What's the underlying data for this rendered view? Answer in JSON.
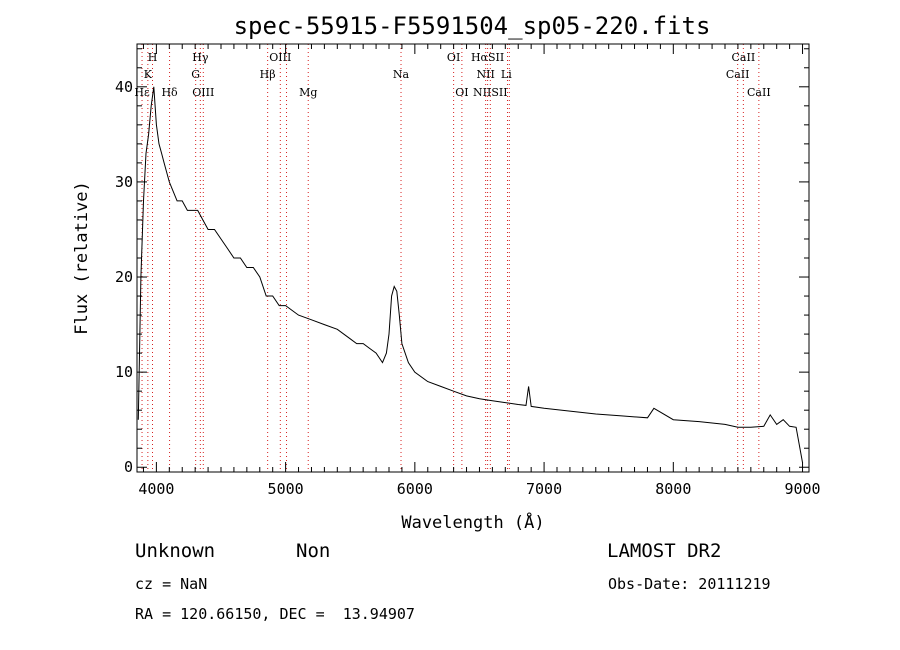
{
  "chart_data": {
    "type": "line",
    "title": "spec-55915-F5591504_sp05-220.fits",
    "xlabel": "Wavelength (Å)",
    "ylabel": "Flux (relative)",
    "xlim": [
      3850,
      9050
    ],
    "ylim": [
      -0.5,
      44.5
    ],
    "xticks": [
      4000,
      5000,
      6000,
      7000,
      8000,
      9000
    ],
    "yticks": [
      0,
      10,
      20,
      30,
      40
    ],
    "grid": false,
    "series": [
      {
        "color": "#000000",
        "x": [
          3860,
          3880,
          3900,
          3920,
          3940,
          3960,
          3980,
          4000,
          4020,
          4040,
          4060,
          4080,
          4100,
          4130,
          4160,
          4200,
          4240,
          4280,
          4320,
          4360,
          4400,
          4450,
          4500,
          4550,
          4600,
          4650,
          4700,
          4750,
          4800,
          4850,
          4900,
          4950,
          5000,
          5100,
          5200,
          5300,
          5400,
          5500,
          5550,
          5600,
          5650,
          5700,
          5750,
          5780,
          5800,
          5820,
          5840,
          5860,
          5880,
          5900,
          5950,
          6000,
          6100,
          6200,
          6300,
          6400,
          6500,
          6600,
          6700,
          6800,
          6860,
          6880,
          6900,
          7000,
          7200,
          7400,
          7600,
          7800,
          7850,
          8000,
          8200,
          8400,
          8500,
          8600,
          8700,
          8750,
          8800,
          8850,
          8900,
          8950,
          9000
        ],
        "y": [
          5,
          20,
          28,
          33,
          35,
          38,
          40,
          36,
          34,
          33,
          32,
          31,
          30,
          29,
          28,
          28,
          27,
          27,
          27,
          26,
          25,
          25,
          24,
          23,
          22,
          22,
          21,
          21,
          20,
          18,
          18,
          17,
          17,
          16,
          15.5,
          15,
          14.5,
          13.5,
          13,
          13,
          12.5,
          12,
          11,
          12,
          14,
          18,
          19,
          18.5,
          16,
          13,
          11,
          10,
          9,
          8.5,
          8,
          7.5,
          7.2,
          7,
          6.8,
          6.6,
          6.5,
          8.5,
          6.4,
          6.2,
          5.9,
          5.6,
          5.4,
          5.2,
          6.2,
          5,
          4.8,
          4.5,
          4.2,
          4.2,
          4.3,
          5.5,
          4.5,
          5,
          4.3,
          4.2,
          0.5
        ]
      }
    ]
  },
  "line_labels": {
    "row1": [
      {
        "text": "H",
        "x": 3970
      },
      {
        "text": "Hγ",
        "x": 4340
      },
      {
        "text": "OIII",
        "x": 4959
      },
      {
        "text": "OI",
        "x": 6300
      },
      {
        "text": "HαSII",
        "x": 6563
      },
      {
        "text": "CaII",
        "x": 8542
      }
    ],
    "row2": [
      {
        "text": "K",
        "x": 3934
      },
      {
        "text": "G",
        "x": 4304
      },
      {
        "text": "Hβ",
        "x": 4861
      },
      {
        "text": "Na",
        "x": 5893
      },
      {
        "text": "NII",
        "x": 6548
      },
      {
        "text": "Li",
        "x": 6708
      },
      {
        "text": "CaII",
        "x": 8498
      }
    ],
    "row3": [
      {
        "text": "Hε",
        "x": 3889
      },
      {
        "text": "Hδ",
        "x": 4102
      },
      {
        "text": "OIII",
        "x": 4363
      },
      {
        "text": "Mg",
        "x": 5175
      },
      {
        "text": "OI",
        "x": 6364
      },
      {
        "text": "NIISII",
        "x": 6584
      },
      {
        "text": "CaII",
        "x": 8662
      }
    ]
  },
  "line_markers": [
    3889,
    3934,
    3970,
    4102,
    4304,
    4340,
    4363,
    4861,
    4959,
    5007,
    5175,
    5893,
    6300,
    6364,
    6548,
    6563,
    6584,
    6717,
    6731,
    8498,
    8542,
    8662
  ],
  "colors": {
    "spectrum": "#000000",
    "markers": "#d62020",
    "axes": "#000000",
    "background": "#ffffff"
  },
  "footer": {
    "class_label": "Unknown",
    "subclass_label": "Non",
    "survey": "LAMOST DR2",
    "cz": "cz = NaN",
    "obs_date": "Obs-Date: 20111219",
    "coords": "RA = 120.66150, DEC =  13.94907"
  }
}
